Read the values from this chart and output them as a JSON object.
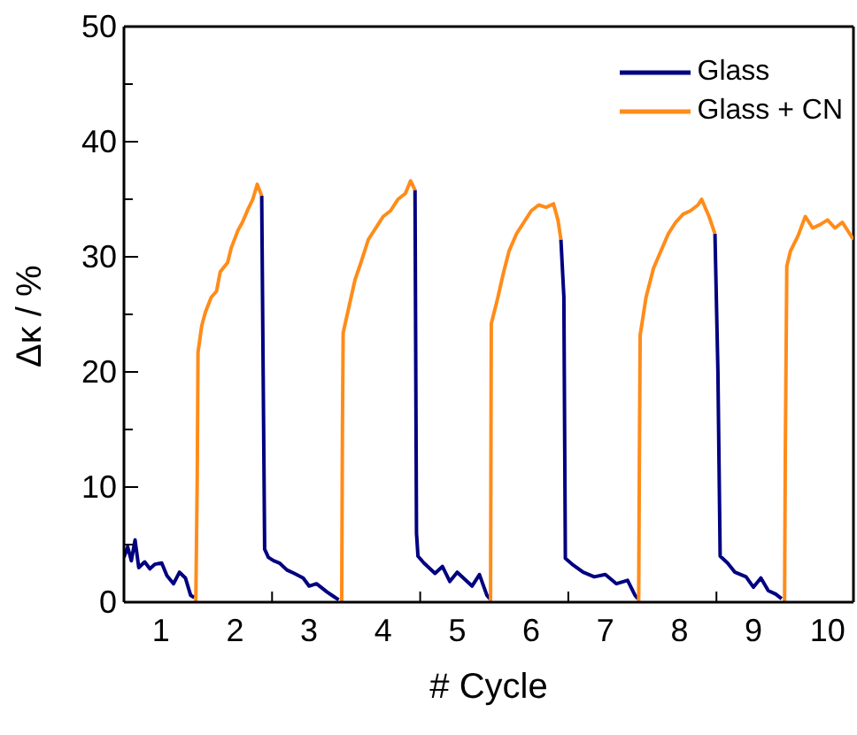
{
  "chart_data": {
    "type": "line",
    "xlabel": "# Cycle",
    "ylabel": "Δκ / %",
    "xlim": [
      0.5,
      10.35
    ],
    "ylim": [
      0,
      50
    ],
    "xticks": [
      1,
      2,
      {
        "value": 2.5,
        "label": null
      },
      3,
      4,
      {
        "value": 4.5,
        "label": null
      },
      5,
      6,
      {
        "value": 6.5,
        "label": null
      },
      7,
      8,
      {
        "value": 8.5,
        "label": null
      },
      9,
      10
    ],
    "yticks": [
      0,
      {
        "value": 5,
        "label": null
      },
      10,
      {
        "value": 15,
        "label": null
      },
      20,
      {
        "value": 25,
        "label": null
      },
      30,
      {
        "value": 35,
        "label": null
      },
      40,
      {
        "value": 45,
        "label": null
      },
      50
    ],
    "legend": "top right",
    "marker": "none",
    "line_style": "solid",
    "series": [
      {
        "name": "Glass",
        "color": "#000080",
        "x": [
          0.5,
          0.55,
          0.6,
          0.65,
          0.7,
          0.78,
          0.85,
          0.92,
          1.01,
          1.08,
          1.17,
          1.25,
          1.33,
          1.4,
          1.45,
          1.9,
          2.36,
          2.38,
          2.4,
          2.45,
          2.52,
          2.6,
          2.7,
          2.8,
          2.92,
          3.0,
          3.1,
          3.24,
          3.33,
          3.4,
          3.9,
          4.43,
          4.45,
          4.47,
          4.55,
          4.7,
          4.8,
          4.9,
          5.0,
          5.1,
          5.2,
          5.3,
          5.4,
          5.44,
          5.9,
          6.4,
          6.44,
          6.46,
          6.55,
          6.7,
          6.85,
          7.0,
          7.15,
          7.3,
          7.4,
          7.44,
          7.9,
          8.48,
          8.52,
          8.55,
          8.65,
          8.75,
          8.9,
          9.0,
          9.1,
          9.2,
          9.3,
          9.38
        ],
        "values": [
          3.9,
          4.8,
          3.6,
          5.4,
          3.0,
          3.5,
          2.9,
          3.3,
          3.4,
          2.3,
          1.6,
          2.6,
          2.1,
          0.6,
          0.4,
          null,
          35.3,
          19.7,
          4.6,
          3.9,
          3.6,
          3.4,
          2.8,
          2.5,
          2.1,
          1.4,
          1.6,
          0.9,
          0.5,
          0.2,
          null,
          35.8,
          6,
          4,
          3.4,
          2.5,
          3.1,
          1.8,
          2.6,
          2.0,
          1.4,
          2.4,
          0.6,
          0.3,
          null,
          31.5,
          26.5,
          3.8,
          3.3,
          2.6,
          2.2,
          2.4,
          1.6,
          1.9,
          0.6,
          0.3,
          null,
          32,
          20,
          4,
          3.4,
          2.6,
          2.2,
          1.3,
          2.1,
          1.0,
          0.7,
          0.3
        ]
      },
      {
        "name": "Glass + CN",
        "color": "#ff8c1a",
        "x": [
          1.47,
          1.49,
          1.5,
          1.55,
          1.6,
          1.68,
          1.75,
          1.8,
          1.9,
          1.95,
          2.04,
          2.1,
          2.18,
          2.24,
          2.3,
          2.33,
          2.36,
          2.9,
          3.44,
          3.45,
          3.46,
          3.55,
          3.62,
          3.7,
          3.8,
          3.9,
          4.0,
          4.1,
          4.2,
          4.3,
          4.37,
          4.43,
          4.9,
          5.45,
          5.46,
          5.55,
          5.62,
          5.7,
          5.8,
          5.9,
          6.0,
          6.1,
          6.2,
          6.3,
          6.36,
          6.4,
          6.9,
          7.45,
          7.46,
          7.47,
          7.55,
          7.65,
          7.75,
          7.85,
          7.95,
          8.05,
          8.15,
          8.25,
          8.3,
          8.4,
          8.48,
          8.9,
          9.42,
          9.43,
          9.45,
          9.5,
          9.6,
          9.7,
          9.8,
          9.9,
          10.0,
          10.1,
          10.2,
          10.3,
          10.35
        ],
        "values": [
          0,
          11,
          21.7,
          24,
          25.2,
          26.5,
          27,
          28.7,
          29.5,
          30.8,
          32.3,
          33,
          34.2,
          35,
          36.3,
          35.8,
          35.3,
          null,
          0,
          15,
          23.4,
          26,
          28,
          29.5,
          31.5,
          32.5,
          33.5,
          34,
          35,
          35.5,
          36.6,
          35.8,
          null,
          0,
          24.2,
          26.5,
          28.5,
          30.5,
          32,
          33,
          34,
          34.5,
          34.3,
          34.6,
          33.2,
          31.5,
          null,
          0,
          13,
          23.2,
          26.5,
          29,
          30.5,
          32,
          33,
          33.7,
          34,
          34.5,
          35,
          33.5,
          32,
          null,
          0,
          13,
          29.2,
          30.5,
          31.8,
          33.5,
          32.5,
          32.8,
          33.2,
          32.5,
          33,
          32,
          31.5
        ]
      }
    ]
  }
}
